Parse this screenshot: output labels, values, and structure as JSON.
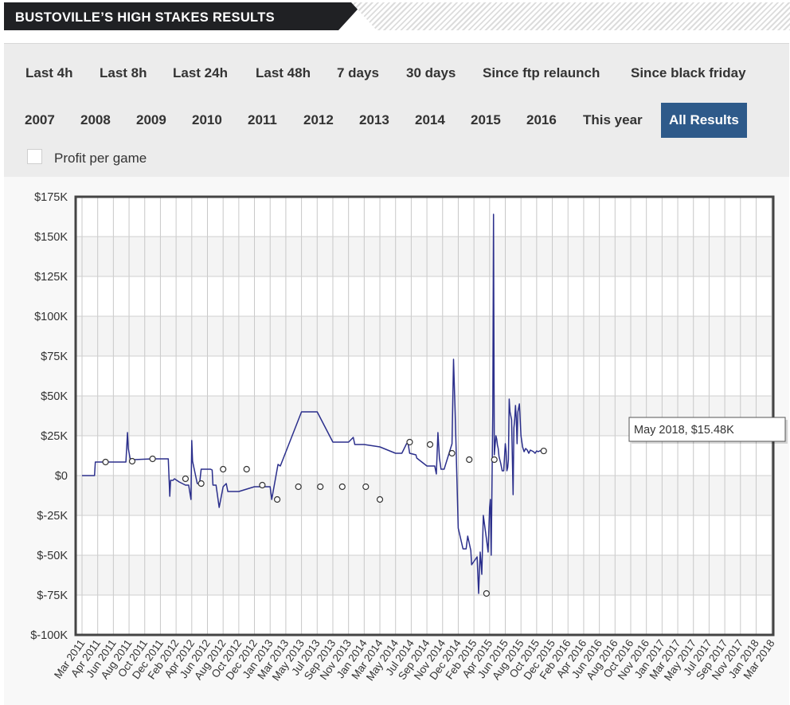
{
  "header": {
    "title": "BUSTOVILLE’S HIGH STAKES RESULTS"
  },
  "filters": {
    "row1": [
      "Last 4h",
      "Last 8h",
      "Last 24h",
      "Last 48h",
      "7 days",
      "30 days",
      "Since ftp relaunch",
      "Since black friday"
    ],
    "row2": [
      "2007",
      "2008",
      "2009",
      "2010",
      "2011",
      "2012",
      "2013",
      "2014",
      "2015",
      "2016",
      "This year",
      "All Results"
    ],
    "active": "All Results",
    "profit_per_game_label": "Profit per game",
    "profit_per_game_checked": false
  },
  "colors": {
    "line": "#2b2f8c",
    "active_button": "#2e5a8a",
    "panel_bg": "#ececec",
    "title_bg": "#202124"
  },
  "tooltip": {
    "text": "May 2018, $15.48K"
  },
  "chart_data": {
    "type": "line",
    "title": "",
    "xlabel": "",
    "ylabel": "",
    "ylim": [
      -100000,
      175000
    ],
    "yticks": [
      175000,
      150000,
      125000,
      100000,
      75000,
      50000,
      25000,
      0,
      -25000,
      -50000,
      -75000,
      -100000
    ],
    "ytick_labels": [
      "$175K",
      "$150K",
      "$125K",
      "$100K",
      "$75K",
      "$50K",
      "$25K",
      "$0",
      "$-25K",
      "$-50K",
      "$-75K",
      "$-100K"
    ],
    "x_tick_labels": [
      "Mar 2011",
      "Apr 2011",
      "Jun 2011",
      "Aug 2011",
      "Oct 2011",
      "Dec 2011",
      "Feb 2012",
      "Apr 2012",
      "Jun 2012",
      "Aug 2012",
      "Oct 2012",
      "Dec 2012",
      "Jan 2013",
      "Mar 2013",
      "May 2013",
      "Jul 2013",
      "Sep 2013",
      "Nov 2013",
      "Jan 2014",
      "Mar 2014",
      "May 2014",
      "Jul 2014",
      "Sep 2014",
      "Nov 2014",
      "Dec 2014",
      "Feb 2015",
      "Apr 2015",
      "Jun 2015",
      "Aug 2015",
      "Oct 2015",
      "Dec 2015",
      "Feb 2016",
      "Apr 2016",
      "Jun 2016",
      "Aug 2016",
      "Oct 2016",
      "Nov 2016",
      "Jan 2017",
      "Mar 2017",
      "May 2017",
      "Jul 2017",
      "Sep 2017",
      "Nov 2017",
      "Jan 2018",
      "Mar 2018"
    ],
    "grid": true,
    "series": [
      {
        "x": [
          0,
          0.8,
          0.85,
          2.8,
          2.9,
          2.95,
          3.1,
          3.3,
          4.5,
          5.5,
          5.6,
          5.65,
          5.8,
          5.9,
          6.2,
          6.6,
          6.8,
          6.95,
          7.0,
          7.05,
          7.35,
          7.5,
          7.6,
          7.75,
          8.1,
          8.2,
          8.3,
          8.35,
          8.55,
          8.75,
          9.0,
          9.2,
          9.3,
          10.0,
          11.0,
          11.5,
          11.55,
          11.7,
          11.75,
          12.0,
          12.1,
          12.5,
          12.65,
          14.0,
          15.0,
          16.0,
          17.0,
          17.3,
          17.4,
          17.55,
          17.6,
          18.0,
          19.0,
          20.0,
          20.2,
          20.4,
          20.5,
          20.7,
          20.8,
          20.9,
          21.3,
          21.35,
          22.0,
          22.5,
          22.6,
          22.7,
          22.8,
          22.9,
          23.1,
          23.6,
          23.7,
          23.8,
          24.0,
          24.3,
          24.5,
          24.6,
          24.8,
          24.85,
          25.2,
          25.3,
          25.35,
          25.4,
          25.5,
          25.6,
          25.8,
          25.9,
          26.0,
          26.05,
          26.1,
          26.2,
          26.25,
          26.3,
          26.4,
          26.45,
          26.5,
          26.55,
          26.6,
          26.65,
          26.7,
          26.8,
          26.9,
          27.0,
          27.05,
          27.1,
          27.15,
          27.2,
          27.25,
          27.3,
          27.4,
          27.5,
          27.55,
          27.6,
          27.65,
          27.7,
          27.75,
          27.8,
          27.9,
          28.0,
          28.1,
          28.2,
          28.3,
          28.4,
          28.5,
          28.6,
          28.7,
          28.8,
          28.9,
          29.0,
          29.1,
          29.2,
          29.3,
          29.35,
          29.4,
          29.5
        ],
        "y": [
          0,
          0,
          8500,
          8500,
          27000,
          17000,
          9000,
          10000,
          10500,
          10500,
          -13000,
          -3000,
          -3000,
          -2000,
          -4000,
          -6000,
          -6000,
          -15000,
          22000,
          9000,
          -5000,
          -5000,
          4000,
          4000,
          4000,
          4000,
          3500,
          -6000,
          -6000,
          -20000,
          -7000,
          -5000,
          -10000,
          -10000,
          -7000,
          -7000,
          -7000,
          -7000,
          -7000,
          -7000,
          -15000,
          7000,
          6000,
          40000,
          40000,
          21000,
          21000,
          24000,
          19500,
          19500,
          19500,
          19500,
          18000,
          14000,
          14000,
          14000,
          16000,
          20000,
          20000,
          14000,
          13000,
          11000,
          6000,
          6000,
          1000,
          27000,
          11000,
          4000,
          4000,
          20000,
          73000,
          40000,
          -33000,
          -46000,
          -46000,
          -38000,
          -47000,
          -56000,
          -51000,
          -74000,
          -60000,
          -48000,
          -62000,
          -25000,
          -40000,
          -48000,
          -20000,
          -15000,
          -50000,
          40000,
          164000,
          13000,
          25000,
          23000,
          19000,
          17000,
          12000,
          10000,
          8000,
          3000,
          3000,
          20000,
          15000,
          3000,
          5000,
          10000,
          48000,
          40000,
          35000,
          -12000,
          30000,
          35000,
          44000,
          36000,
          20000,
          40000,
          45000,
          25000,
          18000,
          15000,
          17000,
          16000,
          14000,
          16000,
          15500,
          15000,
          14000,
          15480,
          15000,
          15480,
          15480,
          15480,
          15480,
          15480
        ],
        "marker_x": [
          1.5,
          3.2,
          4.5,
          6.6,
          7.6,
          9.0,
          10.5,
          11.5,
          12.45,
          13.8,
          15.2,
          16.6,
          18.1,
          19.0,
          20.9,
          22.2,
          23.6,
          24.7,
          25.8,
          26.3,
          29.45
        ],
        "marker_y": [
          8500,
          9000,
          10500,
          -2000,
          -5000,
          4000,
          4000,
          -6000,
          -15000,
          -7000,
          -7000,
          -7000,
          -7000,
          -15000,
          21000,
          19500,
          14000,
          10000,
          -74000,
          10000,
          15480
        ]
      }
    ]
  }
}
